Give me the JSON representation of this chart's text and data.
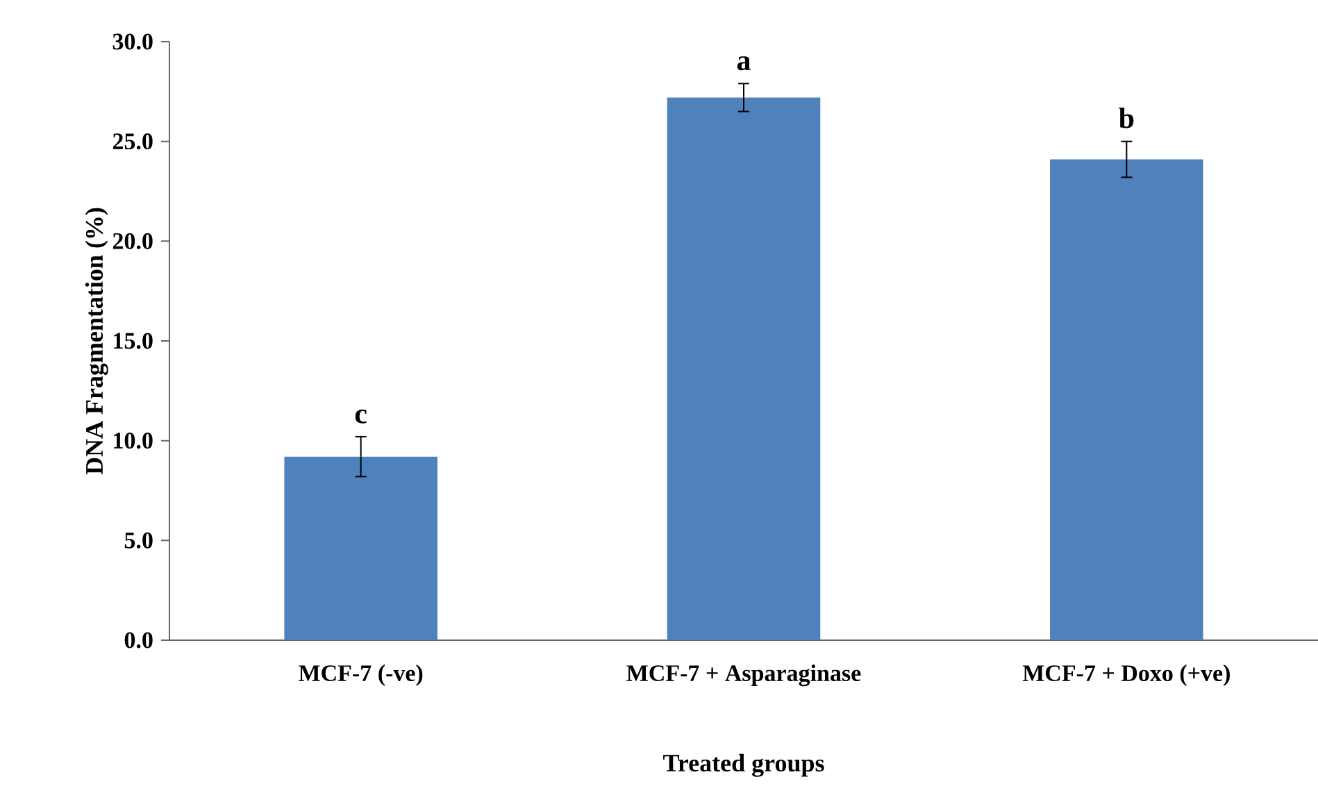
{
  "chart_data": {
    "type": "bar",
    "xlabel": "Treated groups",
    "ylabel": "DNA Fragmentation (%)",
    "categories": [
      "MCF-7 (-ve)",
      "MCF-7 + Asparaginase",
      "MCF-7 + Doxo (+ve)"
    ],
    "values": [
      9.2,
      27.2,
      24.1
    ],
    "errors": [
      1.0,
      0.7,
      0.9
    ],
    "color": "#4f81bd",
    "ylim": [
      0,
      30
    ],
    "yticks": [
      {
        "value": 0,
        "label": "0.0"
      },
      {
        "value": 5,
        "label": "5.0"
      },
      {
        "value": 10,
        "label": "10.0"
      },
      {
        "value": 15,
        "label": "15.0"
      },
      {
        "value": 20,
        "label": "20.0"
      },
      {
        "value": 25,
        "label": "25.0"
      },
      {
        "value": 30,
        "label": "30.0"
      }
    ],
    "annotations": [
      {
        "text": "c",
        "x": "MCF-7 (-ve)",
        "y": 10.2
      },
      {
        "text": "a",
        "x": "MCF-7 + Asparaginase",
        "y": 27.9
      },
      {
        "text": "b",
        "x": "MCF-7 + Doxo (+ve)",
        "y": 25.0
      }
    ]
  }
}
